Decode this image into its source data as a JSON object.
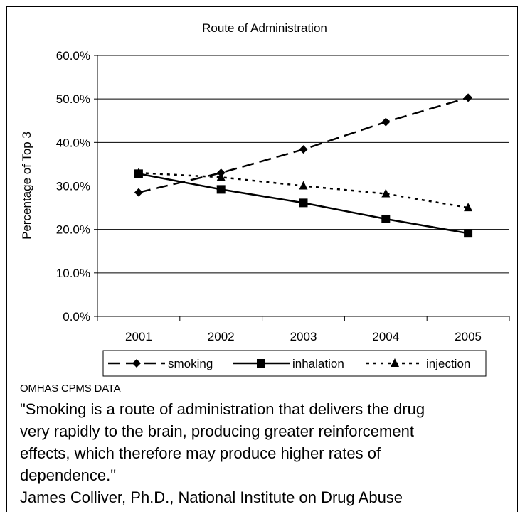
{
  "chart_data": {
    "type": "line",
    "title": "Route of Administration",
    "xlabel": "",
    "ylabel": "Percentage of Top 3",
    "categories": [
      "2001",
      "2002",
      "2003",
      "2004",
      "2005"
    ],
    "yticks": [
      "0.0%",
      "10.0%",
      "20.0%",
      "30.0%",
      "40.0%",
      "50.0%",
      "60.0%"
    ],
    "ylim": [
      0,
      60
    ],
    "grid": true,
    "legend_position": "bottom",
    "series": [
      {
        "name": "smoking",
        "values": [
          28.5,
          33.0,
          38.4,
          44.7,
          50.3
        ],
        "marker": "diamond",
        "line_style": "dashed",
        "color": "#000000"
      },
      {
        "name": "inhalation",
        "values": [
          32.8,
          29.2,
          26.1,
          22.4,
          19.1
        ],
        "marker": "square",
        "line_style": "solid",
        "color": "#000000"
      },
      {
        "name": "injection",
        "values": [
          33.0,
          32.0,
          30.0,
          28.2,
          25.0
        ],
        "marker": "triangle",
        "line_style": "dotted",
        "color": "#000000"
      }
    ]
  },
  "footer": {
    "source": "OMHAS CPMS DATA",
    "quote_lines": [
      "\"Smoking is a route of administration that delivers the drug",
      "very rapidly to the brain, producing greater reinforcement",
      "effects, which therefore may produce higher rates of",
      "dependence.\""
    ],
    "attribution": "James Colliver, Ph.D., National Institute on Drug Abuse"
  }
}
